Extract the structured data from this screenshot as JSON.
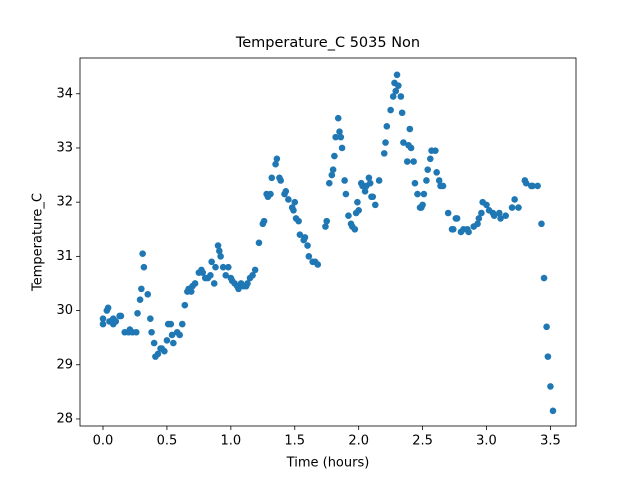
{
  "chart_data": {
    "type": "scatter",
    "title": "Temperature_C 5035 Non",
    "x_label": "Time (hours)",
    "y_label": "Temperature_C",
    "color": "#1f77b4",
    "x": [
      0.0,
      0.0,
      0.03,
      0.04,
      0.05,
      0.08,
      0.08,
      0.1,
      0.13,
      0.14,
      0.17,
      0.2,
      0.21,
      0.23,
      0.26,
      0.27,
      0.29,
      0.3,
      0.31,
      0.32,
      0.35,
      0.37,
      0.38,
      0.4,
      0.41,
      0.43,
      0.45,
      0.46,
      0.48,
      0.5,
      0.51,
      0.53,
      0.54,
      0.55,
      0.58,
      0.6,
      0.62,
      0.64,
      0.66,
      0.67,
      0.69,
      0.7,
      0.72,
      0.75,
      0.77,
      0.78,
      0.8,
      0.82,
      0.84,
      0.85,
      0.87,
      0.88,
      0.9,
      0.91,
      0.92,
      0.94,
      0.96,
      0.98,
      1.0,
      1.01,
      1.03,
      1.05,
      1.06,
      1.08,
      1.1,
      1.12,
      1.13,
      1.15,
      1.17,
      1.19,
      1.22,
      1.25,
      1.26,
      1.28,
      1.29,
      1.31,
      1.32,
      1.35,
      1.36,
      1.38,
      1.39,
      1.42,
      1.43,
      1.45,
      1.48,
      1.49,
      1.5,
      1.51,
      1.53,
      1.54,
      1.57,
      1.58,
      1.6,
      1.61,
      1.64,
      1.66,
      1.68,
      1.74,
      1.75,
      1.77,
      1.79,
      1.8,
      1.81,
      1.82,
      1.84,
      1.85,
      1.86,
      1.87,
      1.89,
      1.9,
      1.92,
      1.94,
      1.95,
      1.97,
      1.98,
      1.99,
      2.0,
      2.02,
      2.03,
      2.05,
      2.06,
      2.08,
      2.09,
      2.1,
      2.11,
      2.13,
      2.16,
      2.2,
      2.21,
      2.22,
      2.25,
      2.27,
      2.28,
      2.29,
      2.3,
      2.31,
      2.33,
      2.34,
      2.35,
      2.38,
      2.39,
      2.4,
      2.41,
      2.43,
      2.44,
      2.46,
      2.48,
      2.49,
      2.5,
      2.51,
      2.53,
      2.54,
      2.56,
      2.57,
      2.6,
      2.61,
      2.63,
      2.64,
      2.66,
      2.7,
      2.73,
      2.74,
      2.76,
      2.77,
      2.8,
      2.82,
      2.85,
      2.86,
      2.9,
      2.93,
      2.94,
      2.96,
      2.97,
      3.0,
      3.02,
      3.05,
      3.06,
      3.1,
      3.11,
      3.15,
      3.2,
      3.22,
      3.25,
      3.3,
      3.31,
      3.35,
      3.36,
      3.4,
      3.43,
      3.45,
      3.47,
      3.48,
      3.5,
      3.52
    ],
    "values": [
      29.75,
      29.85,
      30.0,
      30.05,
      29.8,
      29.85,
      29.75,
      29.8,
      29.9,
      29.9,
      29.6,
      29.6,
      29.65,
      29.6,
      29.6,
      29.95,
      30.2,
      30.4,
      31.05,
      30.8,
      30.3,
      29.85,
      29.6,
      29.4,
      29.15,
      29.2,
      29.3,
      29.3,
      29.25,
      29.45,
      29.75,
      29.75,
      29.55,
      29.4,
      29.6,
      29.55,
      29.75,
      30.1,
      30.35,
      30.4,
      30.35,
      30.45,
      30.5,
      30.7,
      30.75,
      30.7,
      30.6,
      30.6,
      30.65,
      30.9,
      30.5,
      30.8,
      31.2,
      31.1,
      31.0,
      30.8,
      30.65,
      30.8,
      30.6,
      30.55,
      30.5,
      30.45,
      30.4,
      30.5,
      30.45,
      30.45,
      30.5,
      30.6,
      30.65,
      30.75,
      31.25,
      31.6,
      31.65,
      32.15,
      32.1,
      32.15,
      32.45,
      32.7,
      32.8,
      32.45,
      32.4,
      32.15,
      32.2,
      32.05,
      31.9,
      31.85,
      32.0,
      31.7,
      31.65,
      31.4,
      31.3,
      31.35,
      31.2,
      31.0,
      30.9,
      30.9,
      30.85,
      31.55,
      31.65,
      32.35,
      32.5,
      32.6,
      32.85,
      33.2,
      33.55,
      33.3,
      33.2,
      33.0,
      32.4,
      32.15,
      31.75,
      31.6,
      31.55,
      31.5,
      31.8,
      32.0,
      31.85,
      32.35,
      32.3,
      32.2,
      32.3,
      32.45,
      32.35,
      32.1,
      32.1,
      31.95,
      32.4,
      32.9,
      33.1,
      33.4,
      33.7,
      33.95,
      34.2,
      34.05,
      34.35,
      34.15,
      33.95,
      33.65,
      33.1,
      32.75,
      33.05,
      33.35,
      33.0,
      32.75,
      32.35,
      32.15,
      31.9,
      31.9,
      31.95,
      32.15,
      32.4,
      32.6,
      32.8,
      32.95,
      32.95,
      32.55,
      32.4,
      32.3,
      32.3,
      31.8,
      31.5,
      31.5,
      31.7,
      31.7,
      31.45,
      31.5,
      31.5,
      31.45,
      31.55,
      31.6,
      31.7,
      31.8,
      32.0,
      31.95,
      31.85,
      31.8,
      31.75,
      31.8,
      31.7,
      31.75,
      31.9,
      32.05,
      31.9,
      32.4,
      32.35,
      32.3,
      32.3,
      32.3,
      31.6,
      30.6,
      29.7,
      29.15,
      28.6,
      28.15
    ],
    "xlim": [
      -0.18,
      3.7
    ],
    "ylim": [
      27.87,
      34.66
    ],
    "xticks": [
      {
        "value": 0,
        "label": "0.0"
      },
      0.5,
      {
        "value": 1,
        "label": "1.0"
      },
      1.5,
      {
        "value": 2,
        "label": "2.0"
      },
      2.5,
      {
        "value": 3,
        "label": "3.0"
      },
      3.5
    ],
    "yticks": [
      28,
      29,
      30,
      31,
      32,
      33,
      34
    ]
  }
}
